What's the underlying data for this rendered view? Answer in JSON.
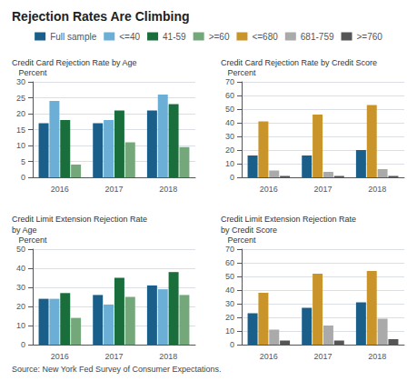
{
  "title": "Rejection Rates Are Climbing",
  "annotations": [
    "Source: New York Fed Survey of Consumer Expectations."
  ],
  "legend": "top",
  "chart_data": [
    {
      "type": "bar",
      "title": "Credit Card Rejection Rate by Age",
      "ylabel": "Percent",
      "categories": [
        "2016",
        "2017",
        "2018"
      ],
      "series": [
        {
          "name": "Full sample",
          "color": "#1a5e8a",
          "values": [
            17,
            17,
            21
          ]
        },
        {
          "name": "<=40",
          "color": "#6baed6",
          "values": [
            24,
            18,
            26
          ]
        },
        {
          "name": "41-59",
          "color": "#1a6e3c",
          "values": [
            18,
            21,
            23
          ]
        },
        {
          "name": ">=60",
          "color": "#74a87a",
          "values": [
            4,
            11,
            9.5
          ]
        }
      ],
      "ylim": [
        0,
        30
      ],
      "yticks": [
        0,
        5,
        10,
        15,
        20,
        25,
        30
      ],
      "grid": true
    },
    {
      "type": "bar",
      "title": "Credit Card Rejection Rate by Credit Score",
      "ylabel": "Percent",
      "categories": [
        "2016",
        "2017",
        "2018"
      ],
      "series": [
        {
          "name": "Full sample",
          "color": "#1a5e8a",
          "values": [
            16,
            16,
            20
          ]
        },
        {
          "name": "<=680",
          "color": "#c9952a",
          "values": [
            41,
            46,
            53
          ]
        },
        {
          "name": "681-759",
          "color": "#aaaaaa",
          "values": [
            5,
            4,
            6
          ]
        },
        {
          "name": ">=760",
          "color": "#555555",
          "values": [
            1,
            1,
            1
          ]
        }
      ],
      "ylim": [
        0,
        70
      ],
      "yticks": [
        0,
        10,
        20,
        30,
        40,
        50,
        60,
        70
      ],
      "grid": true
    },
    {
      "type": "bar",
      "title": "Credit Limit Extension Rejection Rate\nby Age",
      "ylabel": "Percent",
      "categories": [
        "2016",
        "2017",
        "2018"
      ],
      "series": [
        {
          "name": "Full sample",
          "color": "#1a5e8a",
          "values": [
            24,
            26,
            31
          ]
        },
        {
          "name": "<=40",
          "color": "#6baed6",
          "values": [
            24,
            21,
            29
          ]
        },
        {
          "name": "41-59",
          "color": "#1a6e3c",
          "values": [
            27,
            35,
            38
          ]
        },
        {
          "name": ">=60",
          "color": "#74a87a",
          "values": [
            14,
            25,
            26
          ]
        }
      ],
      "ylim": [
        0,
        50
      ],
      "yticks": [
        0,
        10,
        20,
        30,
        40,
        50
      ],
      "grid": true
    },
    {
      "type": "bar",
      "title": "Credit Limit Extension Rejection Rate\nby Credit Score",
      "ylabel": "Percent",
      "categories": [
        "2016",
        "2017",
        "2018"
      ],
      "series": [
        {
          "name": "Full sample",
          "color": "#1a5e8a",
          "values": [
            23,
            27,
            31
          ]
        },
        {
          "name": "<=680",
          "color": "#c9952a",
          "values": [
            38,
            52,
            54
          ]
        },
        {
          "name": "681-759",
          "color": "#aaaaaa",
          "values": [
            11,
            14,
            19
          ]
        },
        {
          "name": ">=760",
          "color": "#555555",
          "values": [
            3,
            3,
            4
          ]
        }
      ],
      "ylim": [
        0,
        70
      ],
      "yticks": [
        0,
        10,
        20,
        30,
        40,
        50,
        60,
        70
      ],
      "grid": true
    }
  ]
}
